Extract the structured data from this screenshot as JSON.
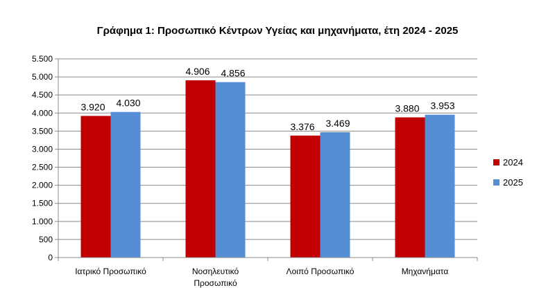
{
  "chart_data": {
    "type": "bar",
    "title": "Γράφημα 1: Προσωπικό Κέντρων Υγείας και μηχανήματα, έτη 2024 - 2025",
    "categories": [
      [
        "Ιατρικό Προσωπικό"
      ],
      [
        "Νοσηλευτικό",
        "Προσωπικό"
      ],
      [
        "Λοιπό Προσωπικό"
      ],
      [
        "Μηχανήματα"
      ]
    ],
    "series": [
      {
        "name": "2024",
        "color": "#c00000",
        "values": [
          3920,
          4906,
          3376,
          3880
        ],
        "labels": [
          "3.920",
          "4.906",
          "3.376",
          "3.880"
        ]
      },
      {
        "name": "2025",
        "color": "#558ed5",
        "values": [
          4030,
          4856,
          3469,
          3953
        ],
        "labels": [
          "4.030",
          "4.856",
          "3.469",
          "3.953"
        ]
      }
    ],
    "ylim": [
      0,
      5500
    ],
    "yticks": [
      {
        "v": 0,
        "label": "0"
      },
      {
        "v": 500,
        "label": "500"
      },
      {
        "v": 1000,
        "label": "1.000"
      },
      {
        "v": 1500,
        "label": "1.500"
      },
      {
        "v": 2000,
        "label": "2.000"
      },
      {
        "v": 2500,
        "label": "2.500"
      },
      {
        "v": 3000,
        "label": "3.000"
      },
      {
        "v": 3500,
        "label": "3.500"
      },
      {
        "v": 4000,
        "label": "4.000"
      },
      {
        "v": 4500,
        "label": "4.500"
      },
      {
        "v": 5000,
        "label": "5.000"
      },
      {
        "v": 5500,
        "label": "5.500"
      }
    ],
    "grid": true,
    "legend": "right"
  }
}
